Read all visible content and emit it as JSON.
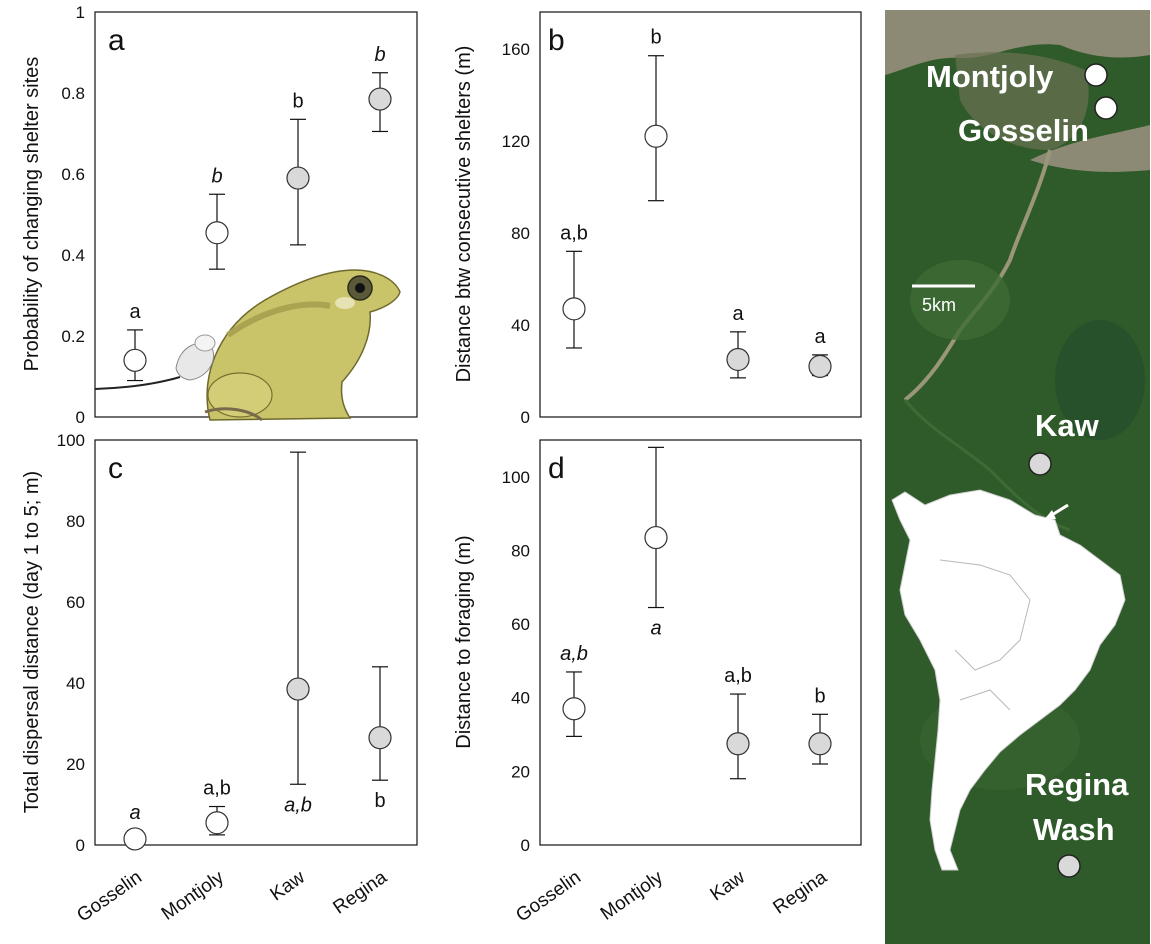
{
  "chart_data": [
    {
      "panel": "a",
      "type": "scatter",
      "ylabel": "Probability of changing shelter sites",
      "ylim": [
        0,
        1
      ],
      "yticks": [
        "0",
        "0.2",
        "0.4",
        "0.6",
        "0.8",
        "1"
      ],
      "categories": [
        "Gosselin",
        "Montjoly",
        "Kaw",
        "Regina"
      ],
      "values": [
        0.14,
        0.455,
        0.59,
        0.785
      ],
      "err_low": [
        0.09,
        0.365,
        0.425,
        0.705
      ],
      "err_high": [
        0.215,
        0.55,
        0.735,
        0.85
      ],
      "fill": [
        "open",
        "open",
        "grey",
        "grey"
      ],
      "letters": [
        {
          "text": "a",
          "italic": false,
          "pos": "above"
        },
        {
          "text": "b",
          "italic": true,
          "pos": "above"
        },
        {
          "text": "b",
          "italic": false,
          "pos": "above"
        },
        {
          "text": "b",
          "italic": true,
          "pos": "above"
        }
      ]
    },
    {
      "panel": "b",
      "type": "scatter",
      "ylabel": "Distance btw consecutive shelters (m)",
      "ylim": [
        0,
        176
      ],
      "yticks": [
        "0",
        "40",
        "80",
        "120",
        "160"
      ],
      "categories": [
        "Gosselin",
        "Montjoly",
        "Kaw",
        "Regina"
      ],
      "values": [
        47,
        122,
        25,
        22
      ],
      "err_low": [
        30,
        94,
        17,
        18
      ],
      "err_high": [
        72,
        157,
        37,
        27
      ],
      "fill": [
        "open",
        "open",
        "grey",
        "grey"
      ],
      "letters": [
        {
          "text": "a,b",
          "italic": false,
          "pos": "above"
        },
        {
          "text": "b",
          "italic": false,
          "pos": "above"
        },
        {
          "text": "a",
          "italic": false,
          "pos": "above"
        },
        {
          "text": "a",
          "italic": false,
          "pos": "above"
        }
      ]
    },
    {
      "panel": "c",
      "type": "scatter",
      "ylabel": "Total dispersal distance (day 1 to 5; m)",
      "ylim": [
        0,
        100
      ],
      "yticks": [
        "0",
        "20",
        "40",
        "60",
        "80",
        "100"
      ],
      "categories": [
        "Gosselin",
        "Montjoly",
        "Kaw",
        "Regina"
      ],
      "values": [
        1.5,
        5.5,
        38.5,
        26.5
      ],
      "err_low": [
        0.5,
        2.5,
        15,
        16
      ],
      "err_high": [
        3.5,
        9.5,
        97,
        44
      ],
      "fill": [
        "open",
        "open",
        "grey",
        "grey"
      ],
      "letters": [
        {
          "text": "a",
          "italic": true,
          "pos": "above"
        },
        {
          "text": "a,b",
          "italic": false,
          "pos": "above"
        },
        {
          "text": "a,b",
          "italic": true,
          "pos": "below"
        },
        {
          "text": "b",
          "italic": false,
          "pos": "below"
        }
      ]
    },
    {
      "panel": "d",
      "type": "scatter",
      "ylabel": "Distance to foraging (m)",
      "ylim": [
        0,
        110
      ],
      "yticks": [
        "0",
        "20",
        "40",
        "60",
        "80",
        "100"
      ],
      "categories": [
        "Gosselin",
        "Montjoly",
        "Kaw",
        "Regina"
      ],
      "values": [
        37,
        83.5,
        27.5,
        27.5
      ],
      "err_low": [
        29.5,
        64.5,
        18,
        22
      ],
      "err_high": [
        47,
        108,
        41,
        35.5
      ],
      "fill": [
        "open",
        "open",
        "grey",
        "grey"
      ],
      "letters": [
        {
          "text": "a,b",
          "italic": true,
          "pos": "above"
        },
        {
          "text": "a",
          "italic": true,
          "pos": "below"
        },
        {
          "text": "a,b",
          "italic": false,
          "pos": "above"
        },
        {
          "text": "b",
          "italic": false,
          "pos": "above"
        }
      ]
    }
  ],
  "map": {
    "labels": [
      "Montjoly",
      "Gosselin",
      "Kaw",
      "Regina",
      "Wash"
    ],
    "scale_label": "5km"
  },
  "colors": {
    "open_marker": "#ffffff",
    "grey_marker": "#d9d9d9",
    "forest": "#2f5a2a",
    "river": "#8c8a74"
  }
}
